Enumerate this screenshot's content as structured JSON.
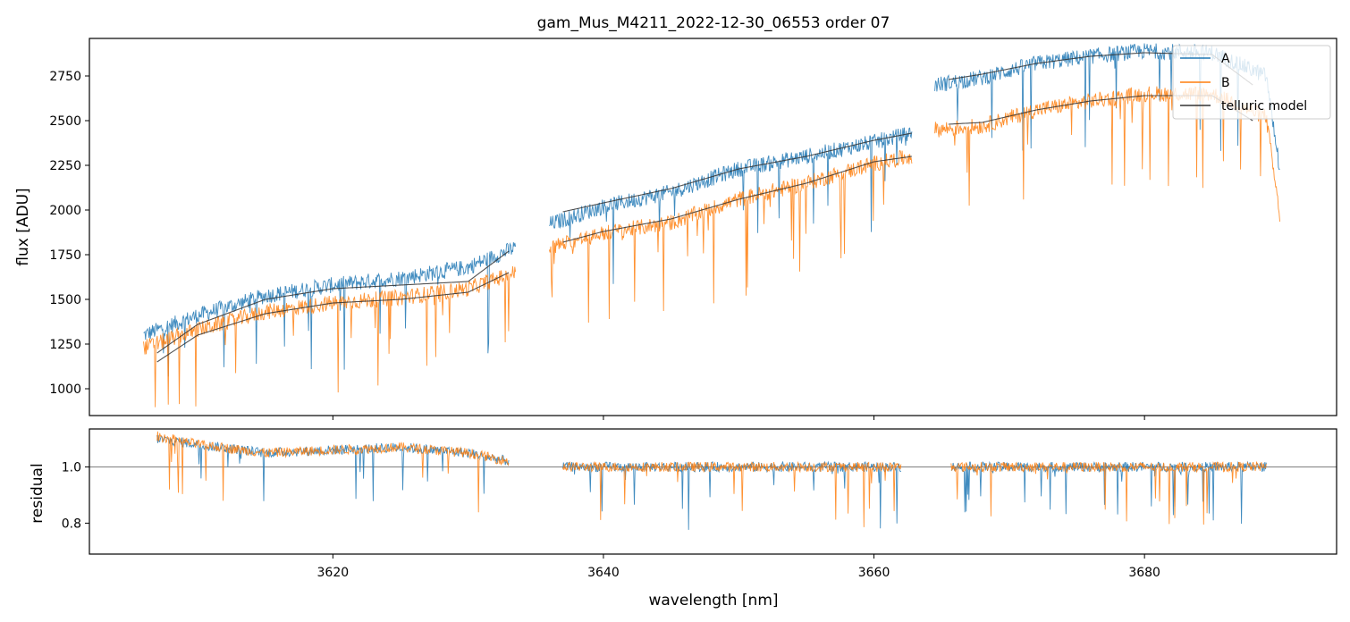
{
  "chart_data": [
    {
      "type": "line",
      "panel": "top",
      "title": "gam_Mus_M4211_2022-12-30_06553  order 07",
      "xlabel": "",
      "ylabel": "flux [ADU]",
      "xlim": [
        3602,
        3694.2
      ],
      "ylim": [
        850,
        2960
      ],
      "yticks": [
        1000,
        1250,
        1500,
        1750,
        2000,
        2250,
        2500,
        2750
      ],
      "xticks": [
        3620,
        3640,
        3660,
        3680
      ],
      "grid": false,
      "legend": {
        "position": "top-right",
        "entries": [
          {
            "name": "A",
            "color": "#1f77b4"
          },
          {
            "name": "B",
            "color": "#ff7f0e"
          },
          {
            "name": "telluric model",
            "color": "#333333"
          }
        ]
      },
      "series": [
        {
          "name": "A",
          "color": "#1f77b4",
          "segments": [
            {
              "x": [
                3606.0,
                3610.0,
                3615.0,
                3620.0,
                3625.0,
                3630.0,
                3633.5
              ],
              "y": [
                1300,
                1410,
                1520,
                1580,
                1620,
                1680,
                1790
              ]
            },
            {
              "x": [
                3636.0,
                3640.0,
                3645.0,
                3650.0,
                3655.0,
                3660.0,
                3662.8
              ],
              "y": [
                1920,
                2020,
                2100,
                2230,
                2300,
                2380,
                2430
              ]
            },
            {
              "x": [
                3664.5,
                3668.0,
                3672.0,
                3676.0,
                3680.0,
                3685.0,
                3689.0,
                3690.0
              ],
              "y": [
                2700,
                2740,
                2820,
                2860,
                2890,
                2880,
                2750,
                2230
              ]
            }
          ]
        },
        {
          "name": "B",
          "color": "#ff7f0e",
          "segments": [
            {
              "x": [
                3606.0,
                3610.0,
                3615.0,
                3620.0,
                3625.0,
                3630.0,
                3633.5
              ],
              "y": [
                1230,
                1330,
                1430,
                1480,
                1510,
                1560,
                1650
              ]
            },
            {
              "x": [
                3636.0,
                3640.0,
                3645.0,
                3650.0,
                3655.0,
                3660.0,
                3662.8
              ],
              "y": [
                1790,
                1870,
                1930,
                2060,
                2150,
                2260,
                2300
              ]
            },
            {
              "x": [
                3664.5,
                3668.0,
                3672.0,
                3676.0,
                3680.0,
                3685.0,
                3689.0,
                3690.0
              ],
              "y": [
                2450,
                2470,
                2560,
                2610,
                2650,
                2650,
                2520,
                1960
              ]
            }
          ]
        },
        {
          "name": "telluric model",
          "color": "#333333",
          "segments": [
            {
              "x": [
                3607.0,
                3610.0,
                3615.0,
                3620.0,
                3625.0,
                3630.0,
                3633.0
              ],
              "y": [
                1200,
                1360,
                1500,
                1560,
                1580,
                1600,
                1770
              ]
            },
            {
              "x": [
                3607.0,
                3610.0,
                3615.0,
                3620.0,
                3625.0,
                3630.0,
                3633.0
              ],
              "y": [
                1150,
                1300,
                1420,
                1480,
                1500,
                1540,
                1650
              ]
            },
            {
              "x": [
                3637.0,
                3640.0,
                3645.0,
                3650.0,
                3655.0,
                3660.0,
                3662.8
              ],
              "y": [
                1990,
                2040,
                2120,
                2230,
                2300,
                2390,
                2430
              ]
            },
            {
              "x": [
                3637.0,
                3640.0,
                3645.0,
                3650.0,
                3655.0,
                3660.0,
                3662.8
              ],
              "y": [
                1820,
                1880,
                1950,
                2060,
                2150,
                2270,
                2300
              ]
            },
            {
              "x": [
                3665.5,
                3668.0,
                3672.0,
                3676.0,
                3680.0,
                3685.0,
                3688.0
              ],
              "y": [
                2730,
                2760,
                2820,
                2860,
                2880,
                2870,
                2700
              ]
            },
            {
              "x": [
                3665.5,
                3668.0,
                3672.0,
                3676.0,
                3680.0,
                3685.0,
                3688.0
              ],
              "y": [
                2480,
                2490,
                2560,
                2610,
                2640,
                2640,
                2500
              ]
            }
          ]
        }
      ]
    },
    {
      "type": "line",
      "panel": "bottom",
      "xlabel": "wavelength [nm]",
      "ylabel": "residual",
      "xlim": [
        3602,
        3694.2
      ],
      "ylim": [
        0.69,
        1.135
      ],
      "yticks": [
        0.8,
        1.0
      ],
      "xticks": [
        3620,
        3640,
        3660,
        3680
      ],
      "reference_line": 1.0,
      "grid": false,
      "series": [
        {
          "name": "A",
          "color": "#1f77b4",
          "segments": [
            {
              "x": [
                3607.0,
                3610.0,
                3615.0,
                3620.0,
                3625.0,
                3630.0,
                3633.0
              ],
              "y": [
                1.1,
                1.08,
                1.05,
                1.06,
                1.07,
                1.05,
                1.02
              ]
            },
            {
              "x": [
                3637.0,
                3645.0,
                3652.0,
                3662.0
              ],
              "y": [
                1.0,
                1.0,
                1.0,
                1.0
              ]
            },
            {
              "x": [
                3665.7,
                3672.0,
                3680.0,
                3689.0
              ],
              "y": [
                1.0,
                1.0,
                1.0,
                1.0
              ]
            }
          ]
        },
        {
          "name": "B",
          "color": "#ff7f0e",
          "segments": [
            {
              "x": [
                3607.0,
                3610.0,
                3615.0,
                3620.0,
                3625.0,
                3630.0,
                3633.0
              ],
              "y": [
                1.11,
                1.08,
                1.05,
                1.06,
                1.07,
                1.05,
                1.02
              ]
            },
            {
              "x": [
                3637.0,
                3645.0,
                3652.0,
                3662.0
              ],
              "y": [
                1.0,
                1.0,
                1.0,
                1.0
              ]
            },
            {
              "x": [
                3665.7,
                3672.0,
                3680.0,
                3689.0
              ],
              "y": [
                1.0,
                1.0,
                1.0,
                1.0
              ]
            }
          ]
        }
      ]
    }
  ]
}
